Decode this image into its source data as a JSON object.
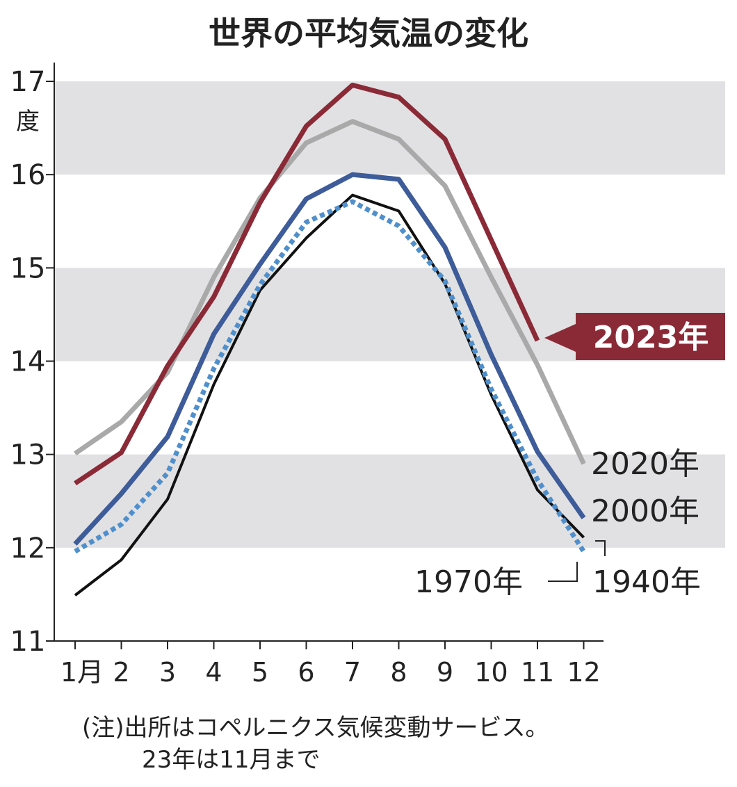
{
  "chart_data": {
    "type": "line",
    "title": "世界の平均気温の変化",
    "ylabel": "度",
    "xlabel": "",
    "ylim": [
      11,
      17
    ],
    "yticks": [
      "11",
      "12",
      "13",
      "14",
      "15",
      "16",
      "17"
    ],
    "categories": [
      "1月",
      "2",
      "3",
      "4",
      "5",
      "6",
      "7",
      "8",
      "9",
      "10",
      "11",
      "12"
    ],
    "grid": "alternating horizontal bands",
    "series": [
      {
        "name": "1940年",
        "color": "#111111",
        "style": "thin",
        "values": [
          11.49,
          11.87,
          12.52,
          13.75,
          14.76,
          15.32,
          15.78,
          15.61,
          14.83,
          13.64,
          12.62,
          12.11
        ]
      },
      {
        "name": "1970年",
        "color": "#4f8fcc",
        "style": "dotted",
        "values": [
          11.96,
          12.25,
          12.8,
          13.92,
          14.82,
          15.49,
          15.71,
          15.45,
          14.86,
          13.7,
          12.73,
          11.96
        ]
      },
      {
        "name": "2000年",
        "color": "#3d5c99",
        "style": "solid",
        "values": [
          12.04,
          12.58,
          13.19,
          14.29,
          15.04,
          15.74,
          16.0,
          15.95,
          15.22,
          14.07,
          13.03,
          12.32
        ]
      },
      {
        "name": "2020年",
        "color": "#a9a9a9",
        "style": "solid",
        "values": [
          13.01,
          13.35,
          13.88,
          14.9,
          15.75,
          16.34,
          16.57,
          16.38,
          15.88,
          14.9,
          13.96,
          12.9
        ]
      },
      {
        "name": "2023年",
        "color": "#8b2a37",
        "style": "solid",
        "highlight": true,
        "values": [
          12.69,
          13.02,
          13.95,
          14.69,
          15.7,
          16.52,
          16.96,
          16.83,
          16.38,
          15.3,
          14.22,
          null
        ]
      }
    ],
    "note": [
      "(注)出所はコペルニクス気候変動サービス。",
      "23年は11月まで"
    ]
  }
}
